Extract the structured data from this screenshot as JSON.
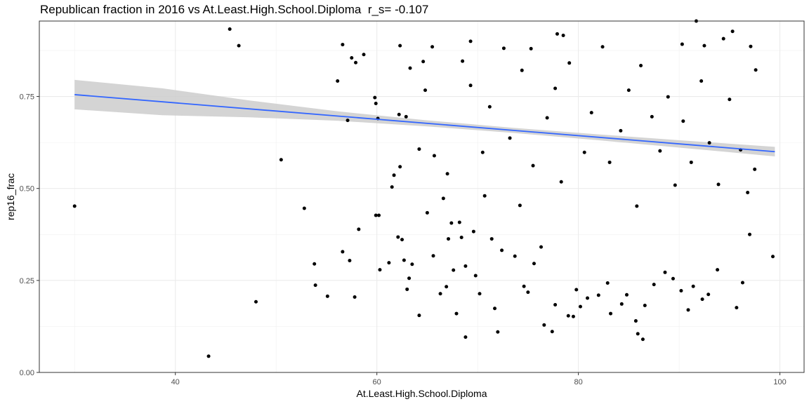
{
  "chart_data": {
    "type": "scatter",
    "title": "Republican fraction in 2016 vs At.Least.High.School.Diploma  r_s= -0.107",
    "xlabel": "At.Least.High.School.Diploma",
    "ylabel": "rep16_frac",
    "xlim": [
      26.5,
      102.4
    ],
    "ylim": [
      0.0,
      0.955
    ],
    "x_ticks": [
      40,
      60,
      80,
      100
    ],
    "x_tick_labels": [
      "40",
      "60",
      "80",
      "100"
    ],
    "y_ticks": [
      0.0,
      0.25,
      0.5,
      0.75
    ],
    "y_tick_labels": [
      "0.00",
      "0.25",
      "0.50",
      "0.75"
    ],
    "x_minor": [
      30,
      50,
      70,
      90
    ],
    "y_minor": [
      0.125,
      0.375,
      0.625,
      0.875
    ],
    "grid": true,
    "legend": "none",
    "point_color": "#000000",
    "fit_line": {
      "method": "linear",
      "x": [
        30,
        99.5
      ],
      "y": [
        0.755,
        0.6
      ],
      "color": "#3366ff",
      "band_color": "#cccccc",
      "band_lower": [
        0.715,
        0.587
      ],
      "band_upper": [
        0.795,
        0.613
      ],
      "band_mid": [
        0.69,
        0.67,
        0.635,
        0.628,
        0.622,
        0.616,
        0.61
      ],
      "band_mid_half": [
        0.012,
        0.008,
        0.005,
        0.005,
        0.006,
        0.008,
        0.01
      ]
    },
    "points": [
      [
        30.0,
        0.452
      ],
      [
        43.3,
        0.044
      ],
      [
        45.4,
        0.933
      ],
      [
        46.3,
        0.888
      ],
      [
        48.0,
        0.192
      ],
      [
        50.5,
        0.578
      ],
      [
        52.8,
        0.446
      ],
      [
        53.8,
        0.295
      ],
      [
        53.9,
        0.237
      ],
      [
        55.1,
        0.207
      ],
      [
        56.1,
        0.792
      ],
      [
        56.6,
        0.891
      ],
      [
        56.6,
        0.328
      ],
      [
        57.1,
        0.685
      ],
      [
        57.3,
        0.304
      ],
      [
        57.5,
        0.855
      ],
      [
        57.8,
        0.205
      ],
      [
        57.9,
        0.842
      ],
      [
        58.2,
        0.389
      ],
      [
        58.7,
        0.864
      ],
      [
        59.8,
        0.747
      ],
      [
        59.9,
        0.731
      ],
      [
        59.9,
        0.427
      ],
      [
        60.2,
        0.427
      ],
      [
        60.1,
        0.69
      ],
      [
        60.3,
        0.279
      ],
      [
        61.2,
        0.298
      ],
      [
        61.5,
        0.504
      ],
      [
        61.7,
        0.536
      ],
      [
        62.1,
        0.368
      ],
      [
        62.2,
        0.701
      ],
      [
        62.3,
        0.888
      ],
      [
        62.3,
        0.559
      ],
      [
        62.5,
        0.361
      ],
      [
        62.7,
        0.305
      ],
      [
        62.9,
        0.695
      ],
      [
        63.0,
        0.226
      ],
      [
        63.2,
        0.256
      ],
      [
        63.3,
        0.827
      ],
      [
        63.5,
        0.294
      ],
      [
        64.2,
        0.607
      ],
      [
        64.2,
        0.155
      ],
      [
        64.6,
        0.845
      ],
      [
        64.8,
        0.767
      ],
      [
        65.0,
        0.434
      ],
      [
        65.5,
        0.885
      ],
      [
        65.6,
        0.317
      ],
      [
        65.7,
        0.589
      ],
      [
        66.9,
        0.233
      ],
      [
        66.3,
        0.214
      ],
      [
        66.6,
        0.473
      ],
      [
        67.0,
        0.54
      ],
      [
        67.1,
        0.363
      ],
      [
        67.4,
        0.406
      ],
      [
        67.6,
        0.278
      ],
      [
        67.9,
        0.16
      ],
      [
        68.2,
        0.408
      ],
      [
        68.4,
        0.367
      ],
      [
        68.8,
        0.289
      ],
      [
        68.8,
        0.096
      ],
      [
        69.3,
        0.9
      ],
      [
        69.6,
        0.383
      ],
      [
        69.8,
        0.263
      ],
      [
        70.2,
        0.214
      ],
      [
        70.7,
        0.48
      ],
      [
        71.4,
        0.363
      ],
      [
        71.7,
        0.174
      ],
      [
        72.0,
        0.11
      ],
      [
        72.4,
        0.332
      ],
      [
        73.7,
        0.316
      ],
      [
        74.2,
        0.454
      ],
      [
        74.6,
        0.234
      ],
      [
        75.0,
        0.218
      ],
      [
        75.3,
        0.88
      ],
      [
        75.6,
        0.296
      ],
      [
        76.3,
        0.341
      ],
      [
        76.6,
        0.129
      ],
      [
        77.4,
        0.111
      ],
      [
        77.7,
        0.184
      ],
      [
        77.9,
        0.92
      ],
      [
        78.5,
        0.916
      ],
      [
        79.0,
        0.154
      ],
      [
        79.5,
        0.152
      ],
      [
        79.8,
        0.225
      ],
      [
        80.2,
        0.179
      ],
      [
        80.9,
        0.202
      ],
      [
        82.0,
        0.21
      ],
      [
        82.9,
        0.243
      ],
      [
        83.2,
        0.16
      ],
      [
        84.3,
        0.186
      ],
      [
        84.8,
        0.211
      ],
      [
        85.7,
        0.14
      ],
      [
        85.9,
        0.105
      ],
      [
        86.4,
        0.09
      ],
      [
        86.6,
        0.182
      ],
      [
        87.5,
        0.239
      ],
      [
        88.6,
        0.272
      ],
      [
        89.4,
        0.255
      ],
      [
        90.2,
        0.222
      ],
      [
        90.3,
        0.892
      ],
      [
        90.9,
        0.17
      ],
      [
        91.4,
        0.234
      ],
      [
        91.7,
        0.955
      ],
      [
        92.3,
        0.199
      ],
      [
        92.5,
        0.888
      ],
      [
        92.9,
        0.212
      ],
      [
        93.8,
        0.279
      ],
      [
        94.4,
        0.907
      ],
      [
        95.3,
        0.927
      ],
      [
        95.7,
        0.176
      ],
      [
        96.3,
        0.244
      ],
      [
        97.0,
        0.375
      ],
      [
        97.1,
        0.886
      ],
      [
        97.6,
        0.822
      ],
      [
        97.5,
        0.552
      ],
      [
        99.3,
        0.315
      ],
      [
        68.5,
        0.846
      ],
      [
        69.3,
        0.78
      ],
      [
        70.5,
        0.598
      ],
      [
        71.2,
        0.722
      ],
      [
        72.6,
        0.881
      ],
      [
        73.2,
        0.637
      ],
      [
        74.4,
        0.821
      ],
      [
        75.5,
        0.562
      ],
      [
        76.9,
        0.692
      ],
      [
        77.7,
        0.772
      ],
      [
        78.3,
        0.518
      ],
      [
        79.1,
        0.841
      ],
      [
        80.6,
        0.598
      ],
      [
        81.3,
        0.706
      ],
      [
        82.4,
        0.885
      ],
      [
        83.1,
        0.571
      ],
      [
        84.2,
        0.657
      ],
      [
        85.0,
        0.767
      ],
      [
        85.8,
        0.452
      ],
      [
        86.2,
        0.834
      ],
      [
        87.3,
        0.695
      ],
      [
        88.1,
        0.602
      ],
      [
        88.9,
        0.749
      ],
      [
        89.6,
        0.509
      ],
      [
        90.4,
        0.683
      ],
      [
        91.2,
        0.571
      ],
      [
        92.2,
        0.792
      ],
      [
        93.0,
        0.624
      ],
      [
        93.9,
        0.511
      ],
      [
        95.0,
        0.742
      ],
      [
        96.1,
        0.605
      ],
      [
        96.8,
        0.489
      ]
    ]
  }
}
